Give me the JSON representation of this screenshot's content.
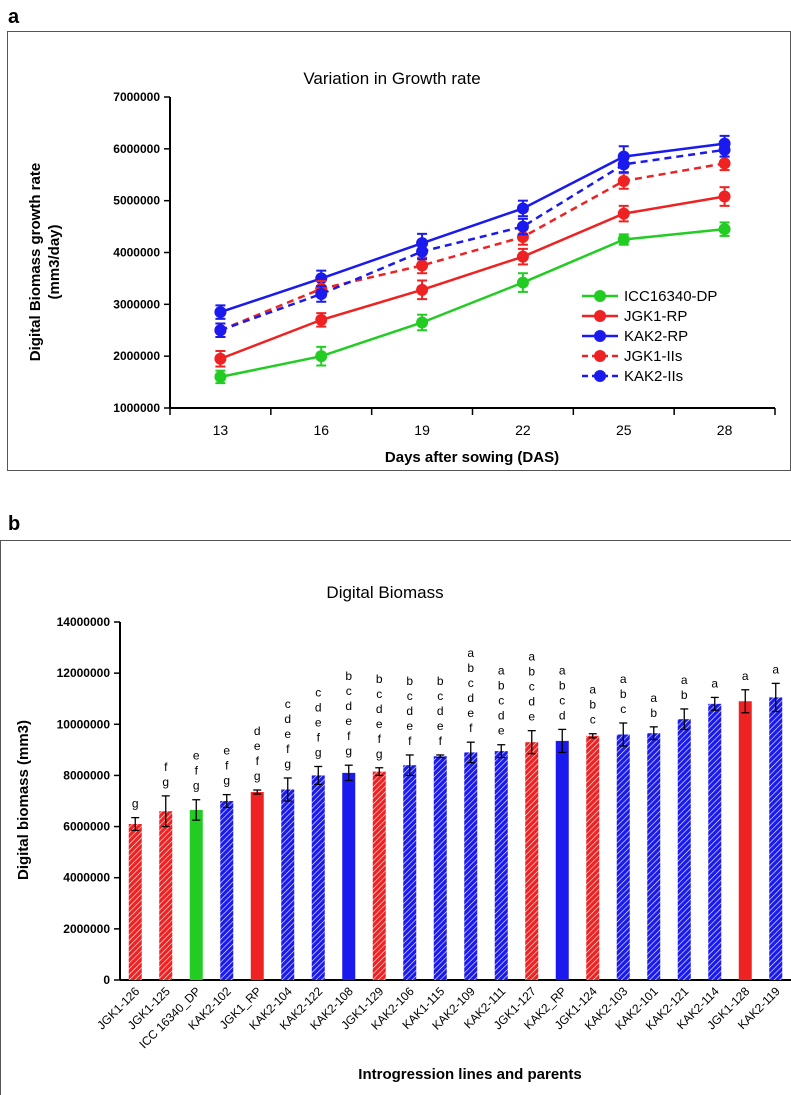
{
  "panel_a": {
    "label": "a"
  },
  "panel_b": {
    "label": "b"
  },
  "chart_data": [
    {
      "type": "line",
      "title": "Variation in Growth rate",
      "xlabel": "Days after sowing (DAS)",
      "ylabel": "Digital Biomass growth rate (mm3/day)",
      "ylabel_lines": [
        "Digital Biomass growth rate",
        "(mm3/day)"
      ],
      "x": [
        13,
        16,
        19,
        22,
        25,
        28
      ],
      "ylim": [
        1000000,
        7000000
      ],
      "yticks": [
        1000000,
        2000000,
        3000000,
        4000000,
        5000000,
        6000000,
        7000000
      ],
      "legend_position": "bottom-right",
      "series": [
        {
          "name": "ICC16340-DP",
          "color": "#22cc22",
          "dashed": false,
          "values": [
            1600000,
            2000000,
            2650000,
            3420000,
            4250000,
            4450000
          ],
          "err": [
            120000,
            180000,
            150000,
            180000,
            100000,
            130000
          ]
        },
        {
          "name": "JGK1-RP",
          "color": "#ee2222",
          "dashed": false,
          "values": [
            1950000,
            2700000,
            3280000,
            3920000,
            4750000,
            5080000
          ],
          "err": [
            150000,
            130000,
            180000,
            150000,
            150000,
            180000
          ]
        },
        {
          "name": "KAK2-RP",
          "color": "#1a1aee",
          "dashed": false,
          "values": [
            2850000,
            3500000,
            4180000,
            4850000,
            5850000,
            6100000
          ],
          "err": [
            130000,
            150000,
            180000,
            150000,
            200000,
            150000
          ]
        },
        {
          "name": "JGK1-IIs",
          "color": "#ee2222",
          "dashed": true,
          "values": [
            2500000,
            3300000,
            3750000,
            4300000,
            5380000,
            5720000
          ],
          "err": [
            130000,
            150000,
            150000,
            150000,
            150000,
            130000
          ]
        },
        {
          "name": "KAK2-IIs",
          "color": "#1a1aee",
          "dashed": true,
          "values": [
            2500000,
            3200000,
            4020000,
            4500000,
            5700000,
            5980000
          ],
          "err": [
            130000,
            150000,
            150000,
            150000,
            150000,
            130000
          ]
        }
      ]
    },
    {
      "type": "bar",
      "title": "Digital Biomass",
      "xlabel": "Introgression lines and parents",
      "ylabel": "Digital biomass (mm3)",
      "ylim": [
        0,
        14000000
      ],
      "yticks": [
        0,
        2000000,
        4000000,
        6000000,
        8000000,
        10000000,
        12000000,
        14000000
      ],
      "categories": [
        "JGK1-126",
        "JGK1-125",
        "ICC 16340_DP",
        "KAK2-102",
        "JGK1_RP",
        "KAK2-104",
        "KAK2-122",
        "KAK2-108",
        "JGK1-129",
        "KAK2-106",
        "KAK1-115",
        "KAK2-109",
        "KAK2-111",
        "JGK1-127",
        "KAK2_RP",
        "JGK1-124",
        "KAK2-103",
        "KAK2-101",
        "KAK2-121",
        "KAK2-114",
        "JGK1-128",
        "KAK2-119"
      ],
      "values": [
        6100000,
        6600000,
        6650000,
        7000000,
        7350000,
        7450000,
        8000000,
        8100000,
        8150000,
        8400000,
        8750000,
        8900000,
        8950000,
        9300000,
        9350000,
        9550000,
        9600000,
        9650000,
        10200000,
        10800000,
        10900000,
        11050000
      ],
      "err": [
        250000,
        600000,
        400000,
        250000,
        80000,
        450000,
        350000,
        300000,
        150000,
        400000,
        50000,
        400000,
        250000,
        450000,
        450000,
        80000,
        450000,
        250000,
        400000,
        250000,
        450000,
        550000
      ],
      "bar_colors": [
        "#ee2222",
        "#ee2222",
        "#22cc22",
        "#1a1aee",
        "#ee2222",
        "#1a1aee",
        "#1a1aee",
        "#1a1aee",
        "#ee2222",
        "#1a1aee",
        "#1a1aee",
        "#1a1aee",
        "#1a1aee",
        "#ee2222",
        "#1a1aee",
        "#ee2222",
        "#1a1aee",
        "#1a1aee",
        "#1a1aee",
        "#1a1aee",
        "#ee2222",
        "#1a1aee"
      ],
      "hatched": [
        true,
        true,
        false,
        true,
        false,
        true,
        true,
        false,
        true,
        true,
        true,
        true,
        true,
        true,
        false,
        true,
        true,
        true,
        true,
        true,
        false,
        true
      ],
      "group_letters": [
        [
          "g"
        ],
        [
          "f",
          "g"
        ],
        [
          "e",
          "f",
          "g"
        ],
        [
          "e",
          "f",
          "g"
        ],
        [
          "d",
          "e",
          "f",
          "g"
        ],
        [
          "c",
          "d",
          "e",
          "f",
          "g"
        ],
        [
          "c",
          "d",
          "e",
          "f",
          "g"
        ],
        [
          "b",
          "c",
          "d",
          "e",
          "f",
          "g"
        ],
        [
          "b",
          "c",
          "d",
          "e",
          "f",
          "g"
        ],
        [
          "b",
          "c",
          "d",
          "e",
          "f"
        ],
        [
          "b",
          "c",
          "d",
          "e",
          "f"
        ],
        [
          "a",
          "b",
          "c",
          "d",
          "e",
          "f"
        ],
        [
          "a",
          "b",
          "c",
          "d",
          "e"
        ],
        [
          "a",
          "b",
          "c",
          "d",
          "e"
        ],
        [
          "a",
          "b",
          "c",
          "d"
        ],
        [
          "a",
          "b",
          "c"
        ],
        [
          "a",
          "b",
          "c"
        ],
        [
          "a",
          "b"
        ],
        [
          "a",
          "b"
        ],
        [
          "a"
        ],
        [
          "a"
        ],
        [
          "a"
        ]
      ]
    }
  ]
}
